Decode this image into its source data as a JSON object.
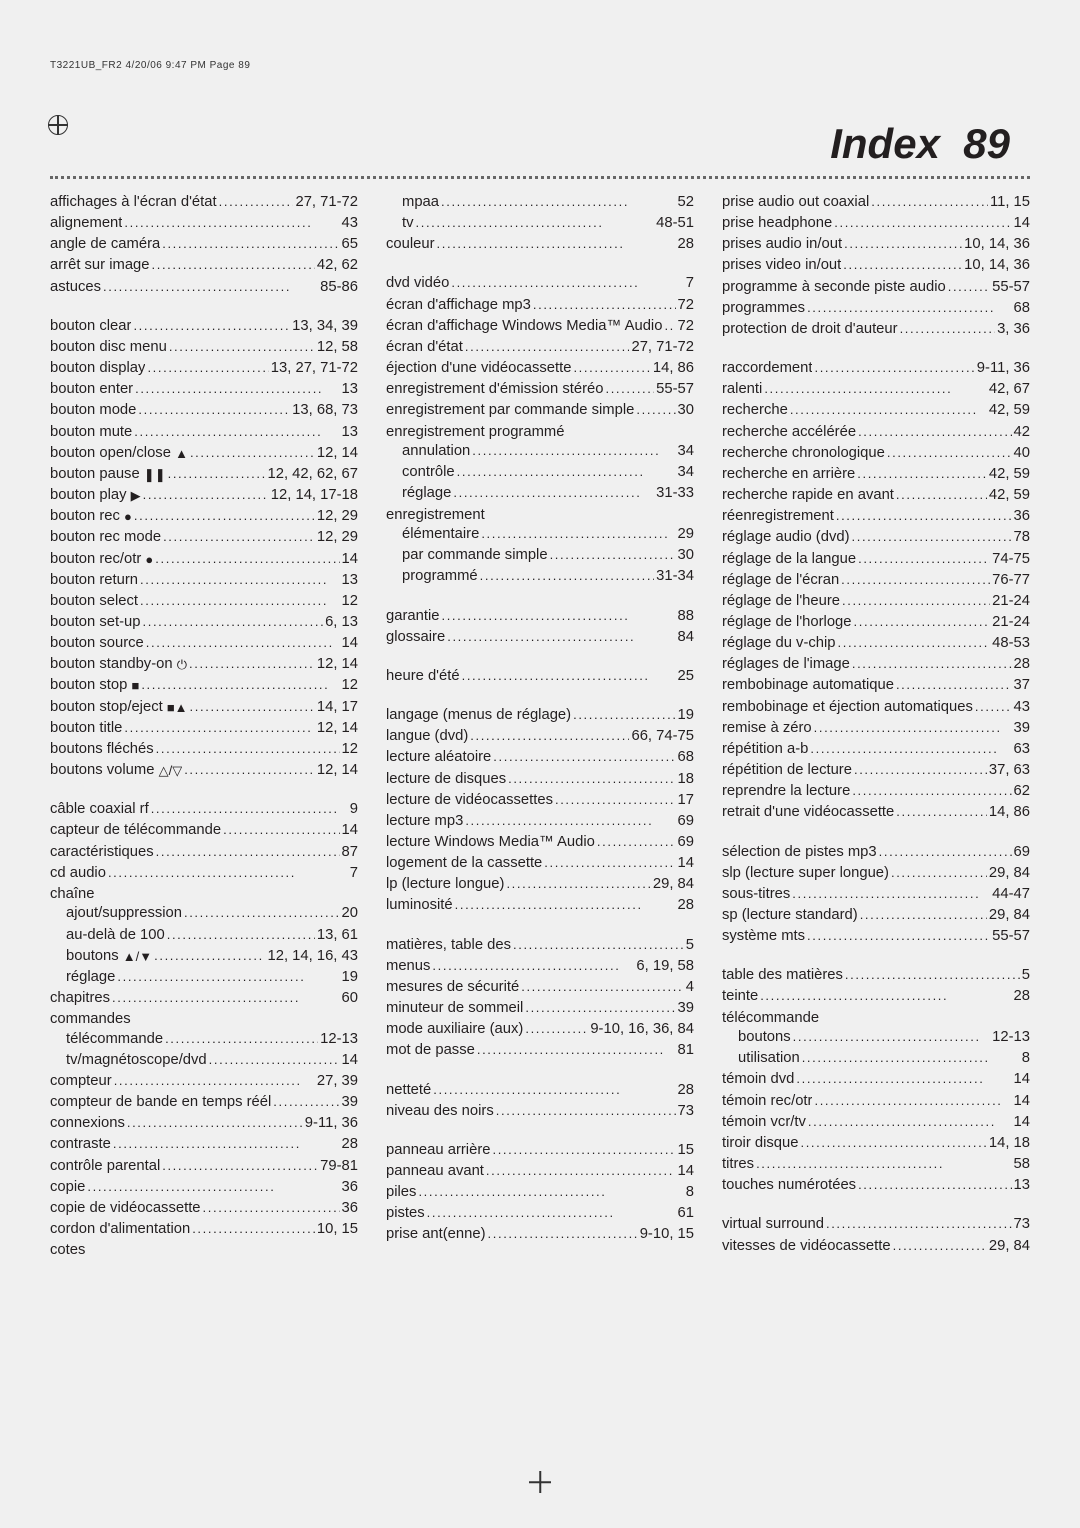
{
  "header_line": "T3221UB_FR2  4/20/06  9:47 PM  Page 89",
  "title_word": "Index",
  "title_num": "89",
  "entries": [
    {
      "t": "affichages à l'écran d'état",
      "p": "27, 71-72"
    },
    {
      "t": "alignement",
      "p": "43"
    },
    {
      "t": "angle de caméra",
      "p": "65"
    },
    {
      "t": "arrêt sur image",
      "p": "42, 62"
    },
    {
      "t": "astuces",
      "p": "85-86"
    },
    {
      "gap": true
    },
    {
      "t": "bouton clear",
      "p": "13, 34, 39"
    },
    {
      "t": "bouton disc menu",
      "p": "12, 58"
    },
    {
      "t": "bouton display",
      "p": "13, 27, 71-72"
    },
    {
      "t": "bouton enter",
      "p": "13"
    },
    {
      "t": "bouton mode",
      "p": "13, 68, 73"
    },
    {
      "t": "bouton mute",
      "p": "13"
    },
    {
      "t": "bouton open/close",
      "icon": "▲",
      "p": "12, 14"
    },
    {
      "t": "bouton pause",
      "icon": "❚❚",
      "p": "12, 42, 62, 67"
    },
    {
      "t": "bouton play",
      "icon": "▶",
      "p": "12, 14, 17-18"
    },
    {
      "t": "bouton rec",
      "icon": "●",
      "p": "12, 29"
    },
    {
      "t": "bouton rec mode",
      "p": "12, 29"
    },
    {
      "t": "bouton rec/otr",
      "icon": "●",
      "p": "14"
    },
    {
      "t": "bouton return",
      "p": "13"
    },
    {
      "t": "bouton select",
      "p": "12"
    },
    {
      "t": "bouton set-up",
      "p": "6, 13"
    },
    {
      "t": "bouton source",
      "p": "14"
    },
    {
      "t": "bouton standby-on",
      "icon": "⏻",
      "p": "12, 14"
    },
    {
      "t": "bouton stop",
      "icon": "■",
      "p": "12"
    },
    {
      "t": "bouton stop/eject",
      "icon": "■▲",
      "p": "14, 17"
    },
    {
      "t": "bouton title",
      "p": "12, 14"
    },
    {
      "t": "boutons fléchés",
      "p": "12"
    },
    {
      "t": "boutons volume",
      "icon": "△/▽",
      "p": "12, 14"
    },
    {
      "gap": true
    },
    {
      "t": "câble coaxial rf",
      "p": "9"
    },
    {
      "t": "capteur de télécommande",
      "p": "14"
    },
    {
      "t": "caractéristiques",
      "p": "87"
    },
    {
      "t": "cd audio",
      "p": "7"
    },
    {
      "t": "chaîne",
      "noP": true
    },
    {
      "t": "ajout/suppression",
      "p": "20",
      "sub": true
    },
    {
      "t": "au-delà de 100",
      "p": "13, 61",
      "sub": true
    },
    {
      "t": "boutons",
      "icon": "▲/▼",
      "p": "12, 14, 16, 43",
      "sub": true
    },
    {
      "t": "réglage",
      "p": "19",
      "sub": true
    },
    {
      "t": "chapitres",
      "p": "60"
    },
    {
      "t": "commandes",
      "noP": true
    },
    {
      "t": "télécommande",
      "p": "12-13",
      "sub": true
    },
    {
      "t": "tv/magnétoscope/dvd",
      "p": "14",
      "sub": true
    },
    {
      "t": "compteur",
      "p": "27, 39"
    },
    {
      "t": "compteur de bande en temps réél",
      "p": "39"
    },
    {
      "t": "connexions",
      "p": "9-11, 36"
    },
    {
      "t": "contraste",
      "p": "28"
    },
    {
      "t": "contrôle parental",
      "p": "79-81"
    },
    {
      "t": "copie",
      "p": "36"
    },
    {
      "t": "copie de vidéocassette",
      "p": "36"
    },
    {
      "t": "cordon d'alimentation",
      "p": "10, 15"
    },
    {
      "t": "cotes",
      "noP": true
    },
    {
      "t": "mpaa",
      "p": "52",
      "sub": true
    },
    {
      "t": "tv",
      "p": "48-51",
      "sub": true
    },
    {
      "t": "couleur",
      "p": "28"
    },
    {
      "gap": true
    },
    {
      "t": "dvd vidéo",
      "p": "7"
    },
    {
      "t": "écran d'affichage mp3",
      "p": "72"
    },
    {
      "t": "écran d'affichage Windows Media™ Audio",
      "p": "72"
    },
    {
      "t": "écran d'état",
      "p": "27, 71-72"
    },
    {
      "t": "éjection d'une vidéocassette",
      "p": "14, 86"
    },
    {
      "t": "enregistrement d'émission stéréo",
      "p": "55-57"
    },
    {
      "t": "enregistrement par commande simple",
      "p": "30"
    },
    {
      "t": "enregistrement programmé",
      "noP": true
    },
    {
      "t": "annulation",
      "p": "34",
      "sub": true
    },
    {
      "t": "contrôle",
      "p": "34",
      "sub": true
    },
    {
      "t": "réglage",
      "p": "31-33",
      "sub": true
    },
    {
      "t": "enregistrement",
      "noP": true
    },
    {
      "t": "élémentaire",
      "p": "29",
      "sub": true
    },
    {
      "t": "par commande simple",
      "p": "30",
      "sub": true
    },
    {
      "t": "programmé",
      "p": "31-34",
      "sub": true
    },
    {
      "gap": true
    },
    {
      "t": "garantie",
      "p": "88"
    },
    {
      "t": "glossaire",
      "p": "84"
    },
    {
      "gap": true
    },
    {
      "t": "heure d'été",
      "p": "25"
    },
    {
      "gap": true
    },
    {
      "t": "langage (menus de réglage)",
      "p": "19"
    },
    {
      "t": "langue (dvd)",
      "p": "66, 74-75"
    },
    {
      "t": "lecture aléatoire",
      "p": "68"
    },
    {
      "t": "lecture de disques",
      "p": "18"
    },
    {
      "t": "lecture de vidéocassettes",
      "p": "17"
    },
    {
      "t": "lecture mp3",
      "p": "69"
    },
    {
      "t": "lecture Windows Media™ Audio",
      "p": "69"
    },
    {
      "t": "logement de la cassette",
      "p": "14"
    },
    {
      "t": "lp (lecture longue)",
      "p": "29, 84"
    },
    {
      "t": "luminosité",
      "p": "28"
    },
    {
      "gap": true
    },
    {
      "t": "matières, table des",
      "p": "5"
    },
    {
      "t": "menus",
      "p": "6, 19, 58"
    },
    {
      "t": "mesures de sécurité",
      "p": "4"
    },
    {
      "t": "minuteur de sommeil",
      "p": "39"
    },
    {
      "t": "mode auxiliaire (aux)",
      "p": "9-10, 16, 36, 84"
    },
    {
      "t": "mot de passe",
      "p": "81"
    },
    {
      "gap": true
    },
    {
      "t": "netteté",
      "p": "28"
    },
    {
      "t": "niveau des noirs",
      "p": "73"
    },
    {
      "gap": true
    },
    {
      "t": "panneau arrière",
      "p": "15"
    },
    {
      "t": "panneau avant",
      "p": "14"
    },
    {
      "t": "piles",
      "p": "8"
    },
    {
      "t": "pistes",
      "p": "61"
    },
    {
      "t": "prise ant(enne)",
      "p": "9-10, 15"
    },
    {
      "t": "prise audio out coaxial",
      "p": "11, 15"
    },
    {
      "t": "prise headphone",
      "p": "14"
    },
    {
      "t": "prises audio in/out",
      "p": "10, 14, 36"
    },
    {
      "t": "prises video in/out",
      "p": "10, 14, 36"
    },
    {
      "t": "programme à seconde piste audio",
      "p": "55-57"
    },
    {
      "t": "programmes",
      "p": "68"
    },
    {
      "t": "protection de droit d'auteur",
      "p": "3, 36"
    },
    {
      "gap": true
    },
    {
      "t": "raccordement",
      "p": "9-11, 36"
    },
    {
      "t": "ralenti",
      "p": "42, 67"
    },
    {
      "t": "recherche",
      "p": "42, 59"
    },
    {
      "t": "recherche accélérée",
      "p": "42"
    },
    {
      "t": "recherche chronologique",
      "p": "40"
    },
    {
      "t": "recherche en arrière",
      "p": "42, 59"
    },
    {
      "t": "recherche rapide en avant",
      "p": "42, 59"
    },
    {
      "t": "réenregistrement",
      "p": "36"
    },
    {
      "t": "réglage audio (dvd)",
      "p": "78"
    },
    {
      "t": "réglage de la langue",
      "p": "74-75"
    },
    {
      "t": "réglage de l'écran",
      "p": "76-77"
    },
    {
      "t": "réglage de l'heure",
      "p": "21-24"
    },
    {
      "t": "réglage de l'horloge",
      "p": "21-24"
    },
    {
      "t": "réglage du v-chip",
      "p": "48-53"
    },
    {
      "t": "réglages de l'image",
      "p": "28"
    },
    {
      "t": "rembobinage automatique",
      "p": "37"
    },
    {
      "t": "rembobinage et éjection automatiques",
      "p": "43"
    },
    {
      "t": "remise à zéro",
      "p": "39"
    },
    {
      "t": "répétition a-b",
      "p": "63"
    },
    {
      "t": "répétition de lecture",
      "p": "37, 63"
    },
    {
      "t": "reprendre la lecture",
      "p": "62"
    },
    {
      "t": "retrait d'une vidéocassette",
      "p": "14, 86"
    },
    {
      "gap": true
    },
    {
      "t": "sélection de pistes mp3",
      "p": "69"
    },
    {
      "t": "slp (lecture super longue)",
      "p": "29, 84"
    },
    {
      "t": "sous-titres",
      "p": "44-47"
    },
    {
      "t": "sp (lecture standard)",
      "p": "29, 84"
    },
    {
      "t": "système mts",
      "p": "55-57"
    },
    {
      "gap": true
    },
    {
      "t": "table des matières",
      "p": "5"
    },
    {
      "t": "teinte",
      "p": "28"
    },
    {
      "t": "télécommande",
      "noP": true
    },
    {
      "t": "boutons",
      "p": "12-13",
      "sub": true
    },
    {
      "t": "utilisation",
      "p": "8",
      "sub": true
    },
    {
      "t": "témoin dvd",
      "p": "14"
    },
    {
      "t": "témoin rec/otr",
      "p": "14"
    },
    {
      "t": "témoin vcr/tv",
      "p": "14"
    },
    {
      "t": "tiroir disque",
      "p": "14, 18"
    },
    {
      "t": "titres",
      "p": "58"
    },
    {
      "t": "touches numérotées",
      "p": "13"
    },
    {
      "gap": true
    },
    {
      "t": "virtual surround",
      "p": "73"
    },
    {
      "t": "vitesses de vidéocassette",
      "p": "29, 84"
    }
  ]
}
